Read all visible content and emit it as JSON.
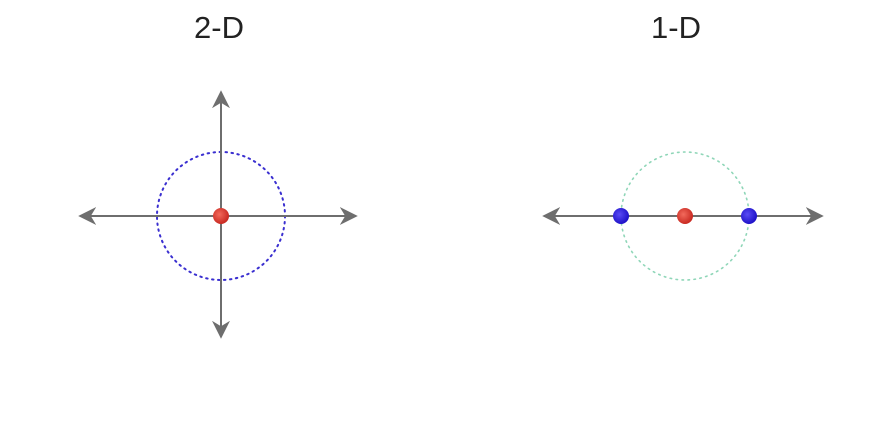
{
  "panels": {
    "left": {
      "title": "2-D",
      "circle_color": "#3a2fd0",
      "center_point_color": "#e03a2f"
    },
    "right": {
      "title": "1-D",
      "circle_color": "#8fd6b8",
      "center_point_color": "#e03a2f",
      "side_point_color": "#2b1fe0"
    },
    "axis_color": "#6e6e6e"
  }
}
